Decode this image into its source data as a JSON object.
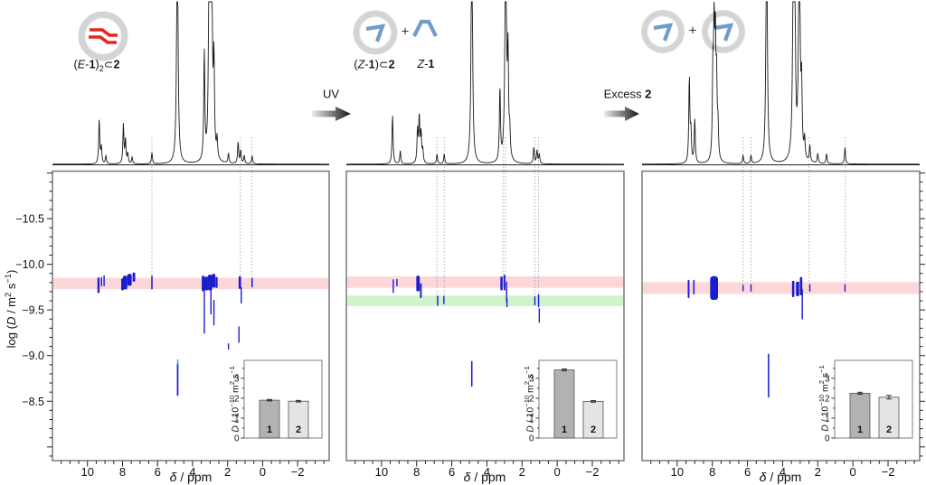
{
  "colors": {
    "blue": "#1d1dd0",
    "teal": "#17b9a0",
    "pink": "#fbd7da",
    "green": "#d0f3cb",
    "red": "#e8251d",
    "steel": "#6f9cc9",
    "bar1": "#b2b2b2",
    "bar2": "#e4e4e4",
    "box": "#7a7a7a",
    "arrow_dark": "#141414",
    "arrow_light": "#ededed"
  },
  "header": {
    "plus": "+",
    "uv_label": "UV",
    "excess_label": [
      {
        "t": "Excess "
      },
      {
        "t": "2",
        "b": 1
      }
    ],
    "panel1_label": [
      {
        "t": "("
      },
      {
        "t": "E",
        "i": 1
      },
      {
        "t": "-"
      },
      {
        "t": "1",
        "b": 1
      },
      {
        "t": ")"
      },
      {
        "t": "2",
        "sub": 1
      },
      {
        "t": "⊂"
      },
      {
        "t": "2",
        "b": 1
      }
    ],
    "panel2_complex_label": [
      {
        "t": "("
      },
      {
        "t": "Z",
        "i": 1
      },
      {
        "t": "-"
      },
      {
        "t": "1",
        "b": 1
      },
      {
        "t": ")⊂"
      },
      {
        "t": "2",
        "b": 1
      }
    ],
    "panel2_free_label": [
      {
        "t": "Z",
        "i": 1
      },
      {
        "t": "-"
      },
      {
        "t": "1",
        "b": 1
      }
    ]
  },
  "axes": {
    "x": {
      "label": [
        {
          "t": "δ",
          "i": 1
        },
        {
          "t": " / ppm"
        }
      ],
      "ticks": [
        10,
        8,
        6,
        4,
        2,
        0,
        -2
      ],
      "tick_labels": [
        "10",
        "8",
        "6",
        "4",
        "2",
        "0",
        "−2"
      ],
      "minor_step": 0.5,
      "range": [
        12,
        -3.8
      ]
    },
    "y": {
      "label": [
        {
          "t": "log ("
        },
        {
          "t": "D",
          "i": 1
        },
        {
          "t": " / m"
        },
        {
          "t": "2",
          "sup": 1
        },
        {
          "t": " s"
        },
        {
          "t": "−1",
          "sup": 1
        },
        {
          "t": ")"
        }
      ],
      "ticks": [
        -10.5,
        -10.0,
        -9.5,
        -9.0,
        -8.5
      ],
      "tick_labels": [
        "−10.5",
        "−10.0",
        "−9.5",
        "−9.0",
        "−8.5"
      ],
      "minor_step": 0.1,
      "range": [
        -11.02,
        -7.85
      ]
    }
  },
  "inset_axis": {
    "ylabel": [
      {
        "t": "D",
        "i": 1
      },
      {
        "t": " / 10"
      },
      {
        "t": "−10",
        "sup": 1
      },
      {
        "t": " m"
      },
      {
        "t": "2",
        "sup": 1
      },
      {
        "t": " s"
      },
      {
        "t": "−1",
        "sup": 1
      }
    ],
    "yticks": [
      0,
      1,
      2,
      3
    ],
    "ymax": 3.9,
    "bar_labels": [
      "1",
      "2"
    ]
  },
  "chart_data": [
    {
      "type": "scatter",
      "name": "DOSY of (E-1)2 in 2",
      "nmr_peaks": [
        [
          9.33,
          0.27
        ],
        [
          9.21,
          0.1
        ],
        [
          8.95,
          0.05
        ],
        [
          7.95,
          0.24
        ],
        [
          7.83,
          0.14
        ],
        [
          7.7,
          0.06
        ],
        [
          7.45,
          0.04
        ],
        [
          6.32,
          0.07
        ],
        [
          4.87,
          1.6,
          0.045
        ],
        [
          3.33,
          0.66
        ],
        [
          3.05,
          1.5,
          0.04
        ],
        [
          2.92,
          1.5,
          0.05
        ],
        [
          2.78,
          0.55
        ],
        [
          2.6,
          0.12
        ],
        [
          1.95,
          0.06
        ],
        [
          1.4,
          0.13
        ],
        [
          1.25,
          0.08
        ],
        [
          1.05,
          0.05
        ],
        [
          0.6,
          0.05
        ]
      ],
      "bands": [
        {
          "logd": -9.79,
          "half": 0.062,
          "color": "pink"
        }
      ],
      "guides": [
        {
          "ppm": 6.32,
          "end": -9.79
        },
        {
          "ppm": 1.27,
          "end": -9.79
        },
        {
          "ppm": 0.62,
          "end": -9.79
        }
      ],
      "clusters": [
        [
          9.37,
          0.12,
          -9.77,
          0.17
        ],
        [
          9.2,
          0.07,
          -9.81,
          0.1
        ],
        [
          9.05,
          0.07,
          -9.82,
          0.12
        ],
        [
          8.0,
          0.15,
          -9.78,
          0.13
        ],
        [
          7.85,
          0.25,
          -9.8,
          0.15
        ],
        [
          7.6,
          0.25,
          -9.83,
          0.13
        ],
        [
          7.35,
          0.15,
          -9.86,
          0.1
        ],
        [
          6.32,
          0.08,
          -9.8,
          0.15
        ],
        [
          3.4,
          0.15,
          -9.79,
          0.17
        ],
        [
          3.33,
          0.07,
          -9.55,
          0.62
        ],
        [
          3.2,
          0.2,
          -9.79,
          0.15
        ],
        [
          3.0,
          0.25,
          -9.8,
          0.17
        ],
        [
          2.95,
          0.07,
          -9.6,
          0.3
        ],
        [
          2.8,
          0.2,
          -9.82,
          0.15
        ],
        [
          2.78,
          0.06,
          -9.47,
          0.28
        ],
        [
          2.63,
          0.12,
          -9.8,
          0.12
        ],
        [
          1.95,
          0.06,
          -9.1,
          0.07
        ],
        [
          1.35,
          0.05,
          -9.23,
          0.18
        ],
        [
          1.3,
          0.14,
          -9.8,
          0.14
        ],
        [
          1.22,
          0.05,
          -9.66,
          0.18
        ],
        [
          0.6,
          0.08,
          -9.8,
          0.1
        ],
        [
          4.85,
          0.09,
          -8.74,
          0.36
        ],
        [
          4.85,
          0.07,
          -8.93,
          0.06,
          "teal"
        ]
      ],
      "inset": {
        "values": [
          1.9,
          1.85
        ],
        "errors": [
          0.04,
          0.04
        ]
      }
    },
    {
      "type": "scatter",
      "name": "DOSY after UV",
      "nmr_peaks": [
        [
          9.37,
          0.3
        ],
        [
          8.93,
          0.08
        ],
        [
          7.95,
          0.2
        ],
        [
          7.85,
          0.28
        ],
        [
          7.75,
          0.18
        ],
        [
          7.65,
          0.08
        ],
        [
          6.84,
          0.06
        ],
        [
          6.43,
          0.06
        ],
        [
          4.86,
          1.6,
          0.045
        ],
        [
          3.26,
          0.45
        ],
        [
          2.93,
          1.5,
          0.05
        ],
        [
          2.8,
          0.6
        ],
        [
          2.7,
          0.15
        ],
        [
          1.33,
          0.1
        ],
        [
          1.15,
          0.08
        ],
        [
          1.02,
          0.06
        ]
      ],
      "bands": [
        {
          "logd": -9.805,
          "half": 0.062,
          "color": "pink"
        },
        {
          "logd": -9.6,
          "half": 0.058,
          "color": "green"
        }
      ],
      "guides": [
        {
          "ppm": 6.84,
          "end": -9.6
        },
        {
          "ppm": 6.43,
          "end": -9.6
        },
        {
          "ppm": 3.08,
          "end": -9.8
        },
        {
          "ppm": 2.95,
          "end": -9.8
        },
        {
          "ppm": 1.27,
          "end": -9.6
        },
        {
          "ppm": 1.07,
          "end": -9.6
        }
      ],
      "clusters": [
        [
          9.33,
          0.07,
          -9.76,
          0.15
        ],
        [
          9.12,
          0.05,
          -9.8,
          0.08
        ],
        [
          7.92,
          0.2,
          -9.79,
          0.17
        ],
        [
          7.76,
          0.1,
          -9.71,
          0.16
        ],
        [
          6.8,
          0.07,
          -9.6,
          0.11
        ],
        [
          6.45,
          0.06,
          -9.61,
          0.09
        ],
        [
          3.17,
          0.13,
          -9.79,
          0.15
        ],
        [
          3.0,
          0.1,
          -9.8,
          0.17
        ],
        [
          2.88,
          0.07,
          -9.7,
          0.22
        ],
        [
          2.86,
          0.06,
          -9.58,
          0.1
        ],
        [
          1.27,
          0.06,
          -9.6,
          0.1
        ],
        [
          1.06,
          0.06,
          -9.6,
          0.14
        ],
        [
          1.02,
          0.05,
          -9.44,
          0.16
        ],
        [
          4.86,
          0.08,
          -8.8,
          0.28
        ]
      ],
      "inset": {
        "values": [
          3.42,
          1.84
        ],
        "errors": [
          0.05,
          0.04
        ]
      }
    },
    {
      "type": "scatter",
      "name": "DOSY after excess 2",
      "nmr_peaks": [
        [
          9.31,
          0.52
        ],
        [
          9.22,
          0.18
        ],
        [
          9.0,
          0.27
        ],
        [
          7.97,
          0.5
        ],
        [
          7.9,
          0.78
        ],
        [
          7.83,
          0.68
        ],
        [
          7.76,
          0.45
        ],
        [
          7.68,
          0.2
        ],
        [
          6.25,
          0.05
        ],
        [
          5.8,
          0.05
        ],
        [
          4.91,
          1.6,
          0.045
        ],
        [
          3.38,
          1.5,
          0.05
        ],
        [
          3.3,
          0.8
        ],
        [
          3.05,
          1.5,
          0.05
        ],
        [
          2.92,
          0.4
        ],
        [
          2.75,
          0.12
        ],
        [
          2.45,
          0.1
        ],
        [
          2.0,
          0.06
        ],
        [
          1.5,
          0.06
        ],
        [
          0.45,
          0.1
        ]
      ],
      "bands": [
        {
          "logd": -9.74,
          "half": 0.065,
          "color": "pink"
        }
      ],
      "guides": [
        {
          "ppm": 6.25,
          "end": -9.74
        },
        {
          "ppm": 5.8,
          "end": -9.74
        },
        {
          "ppm": 2.49,
          "end": -9.74
        },
        {
          "ppm": 0.43,
          "end": -9.74
        }
      ],
      "clusters": [
        [
          9.35,
          0.1,
          -9.73,
          0.2
        ],
        [
          9.05,
          0.08,
          -9.75,
          0.16
        ],
        [
          7.9,
          0.45,
          -9.74,
          0.26
        ],
        [
          6.25,
          0.06,
          -9.74,
          0.07
        ],
        [
          5.8,
          0.07,
          -9.74,
          0.08
        ],
        [
          3.4,
          0.13,
          -9.73,
          0.18
        ],
        [
          3.15,
          0.18,
          -9.73,
          0.16
        ],
        [
          2.95,
          0.14,
          -9.76,
          0.2
        ],
        [
          2.88,
          0.07,
          -9.56,
          0.33
        ],
        [
          2.45,
          0.06,
          -9.74,
          0.08
        ],
        [
          0.45,
          0.06,
          -9.74,
          0.08
        ],
        [
          4.8,
          0.08,
          -8.78,
          0.48
        ]
      ],
      "inset": {
        "values": [
          2.25,
          2.05
        ],
        "errors": [
          0.05,
          0.09
        ]
      }
    }
  ]
}
